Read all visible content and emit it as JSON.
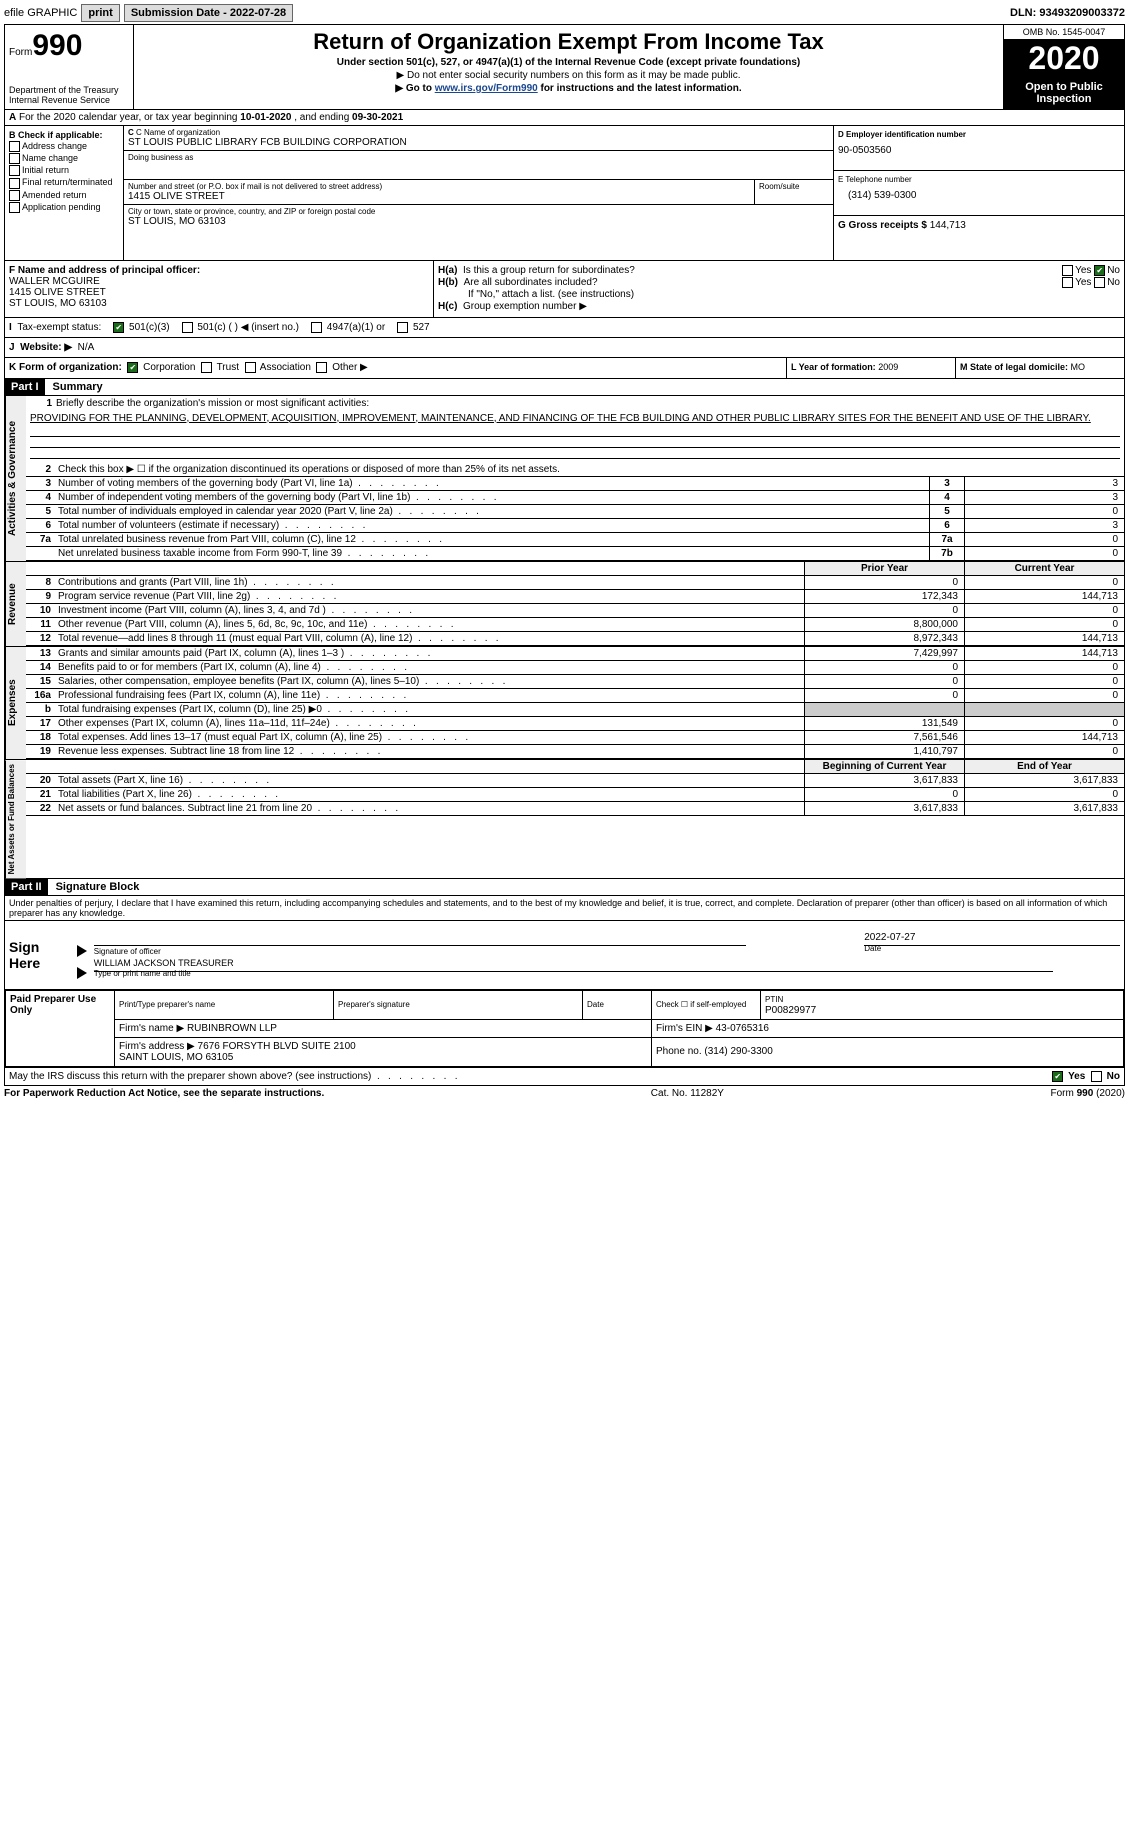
{
  "topbar": {
    "efile": "efile GRAPHIC",
    "print": "print",
    "submission_label": "Submission Date - ",
    "submission_date": "2022-07-28",
    "dln_label": "DLN: ",
    "dln": "93493209003372"
  },
  "header": {
    "form_label": "Form",
    "form_num": "990",
    "dept": "Department of the Treasury\nInternal Revenue Service",
    "title": "Return of Organization Exempt From Income Tax",
    "subtitle": "Under section 501(c), 527, or 4947(a)(1) of the Internal Revenue Code (except private foundations)",
    "instr1": "▶ Do not enter social security numbers on this form as it may be made public.",
    "instr2_pre": "▶ Go to ",
    "instr2_link": "www.irs.gov/Form990",
    "instr2_post": " for instructions and the latest information.",
    "omb": "OMB No. 1545-0047",
    "tax_year": "2020",
    "open_pub": "Open to Public Inspection"
  },
  "row_a": {
    "pre": "A",
    "text": "For the 2020 calendar year, or tax year beginning ",
    "start": "10-01-2020",
    "mid": "   , and ending ",
    "end": "09-30-2021"
  },
  "col_b": {
    "hdr": "B Check if applicable:",
    "items": [
      "Address change",
      "Name change",
      "Initial return",
      "Final return/terminated",
      "Amended return",
      "Application pending"
    ]
  },
  "col_c": {
    "name_lbl": "C Name of organization",
    "name": "ST LOUIS PUBLIC LIBRARY FCB BUILDING CORPORATION",
    "dba_lbl": "Doing business as",
    "dba": "",
    "addr_lbl": "Number and street (or P.O. box if mail is not delivered to street address)",
    "addr": "1415 OLIVE STREET",
    "room_lbl": "Room/suite",
    "city_lbl": "City or town, state or province, country, and ZIP or foreign postal code",
    "city": "ST LOUIS, MO  63103"
  },
  "col_d": {
    "d_lbl": "D Employer identification number",
    "d_val": "90-0503560",
    "e_lbl": "E Telephone number",
    "e_val": "(314) 539-0300",
    "g_lbl": "G Gross receipts $ ",
    "g_val": "144,713"
  },
  "row_f": {
    "lbl": "F Name and address of principal officer:",
    "name": "WALLER MCGUIRE",
    "addr": "1415 OLIVE STREET\nST LOUIS, MO  63103"
  },
  "row_h": {
    "ha_lbl": "H(a)",
    "ha_txt": "Is this a group return for subordinates?",
    "hb_lbl": "H(b)",
    "hb_txt": "Are all subordinates included?",
    "attach_note": "If \"No,\" attach a list. (see instructions)",
    "hc_lbl": "H(c)",
    "hc_txt": "Group exemption number ▶",
    "yes": "Yes",
    "no": "No"
  },
  "row_i": {
    "lbl": "I",
    "txt": "Tax-exempt status:",
    "opts": [
      "501(c)(3)",
      "501(c) (  ) ◀ (insert no.)",
      "4947(a)(1) or",
      "527"
    ]
  },
  "row_j": {
    "lbl": "J",
    "txt": "Website: ▶",
    "val": "N/A"
  },
  "row_k": {
    "lbl": "K Form of organization:",
    "opts": [
      "Corporation",
      "Trust",
      "Association",
      "Other ▶"
    ],
    "l_lbl": "L Year of formation: ",
    "l_val": "2009",
    "m_lbl": "M State of legal domicile: ",
    "m_val": "MO"
  },
  "part1": {
    "hdr": "Part I",
    "title": "Summary",
    "line1_lbl": "1",
    "line1_txt": "Briefly describe the organization's mission or most significant activities:",
    "line1_val": "PROVIDING FOR THE PLANNING, DEVELOPMENT, ACQUISITION, IMPROVEMENT, MAINTENANCE, AND FINANCING OF THE FCB BUILDING AND OTHER PUBLIC LIBRARY SITES FOR THE BENEFIT AND USE OF THE LIBRARY.",
    "line2_lbl": "2",
    "line2_txt": "Check this box ▶ ☐  if the organization discontinued its operations or disposed of more than 25% of its net assets.",
    "lines_gov": [
      {
        "n": "3",
        "d": "Number of voting members of the governing body (Part VI, line 1a)",
        "box": "3",
        "v": "3"
      },
      {
        "n": "4",
        "d": "Number of independent voting members of the governing body (Part VI, line 1b)",
        "box": "4",
        "v": "3"
      },
      {
        "n": "5",
        "d": "Total number of individuals employed in calendar year 2020 (Part V, line 2a)",
        "box": "5",
        "v": "0"
      },
      {
        "n": "6",
        "d": "Total number of volunteers (estimate if necessary)",
        "box": "6",
        "v": "3"
      },
      {
        "n": "7a",
        "d": "Total unrelated business revenue from Part VIII, column (C), line 12",
        "box": "7a",
        "v": "0"
      },
      {
        "n": "",
        "d": "Net unrelated business taxable income from Form 990-T, line 39",
        "box": "7b",
        "v": "0"
      }
    ],
    "prior_hdr": "Prior Year",
    "curr_hdr": "Current Year",
    "lines_rev": [
      {
        "n": "8",
        "d": "Contributions and grants (Part VIII, line 1h)",
        "p": "0",
        "c": "0"
      },
      {
        "n": "9",
        "d": "Program service revenue (Part VIII, line 2g)",
        "p": "172,343",
        "c": "144,713"
      },
      {
        "n": "10",
        "d": "Investment income (Part VIII, column (A), lines 3, 4, and 7d )",
        "p": "0",
        "c": "0"
      },
      {
        "n": "11",
        "d": "Other revenue (Part VIII, column (A), lines 5, 6d, 8c, 9c, 10c, and 11e)",
        "p": "8,800,000",
        "c": "0"
      },
      {
        "n": "12",
        "d": "Total revenue—add lines 8 through 11 (must equal Part VIII, column (A), line 12)",
        "p": "8,972,343",
        "c": "144,713"
      }
    ],
    "lines_exp": [
      {
        "n": "13",
        "d": "Grants and similar amounts paid (Part IX, column (A), lines 1–3 )",
        "p": "7,429,997",
        "c": "144,713"
      },
      {
        "n": "14",
        "d": "Benefits paid to or for members (Part IX, column (A), line 4)",
        "p": "0",
        "c": "0"
      },
      {
        "n": "15",
        "d": "Salaries, other compensation, employee benefits (Part IX, column (A), lines 5–10)",
        "p": "0",
        "c": "0"
      },
      {
        "n": "16a",
        "d": "Professional fundraising fees (Part IX, column (A), line 11e)",
        "p": "0",
        "c": "0"
      },
      {
        "n": "b",
        "d": "Total fundraising expenses (Part IX, column (D), line 25) ▶0",
        "p": "",
        "c": "",
        "grey": true
      },
      {
        "n": "17",
        "d": "Other expenses (Part IX, column (A), lines 11a–11d, 11f–24e)",
        "p": "131,549",
        "c": "0"
      },
      {
        "n": "18",
        "d": "Total expenses. Add lines 13–17 (must equal Part IX, column (A), line 25)",
        "p": "7,561,546",
        "c": "144,713"
      },
      {
        "n": "19",
        "d": "Revenue less expenses. Subtract line 18 from line 12",
        "p": "1,410,797",
        "c": "0"
      }
    ],
    "beg_hdr": "Beginning of Current Year",
    "end_hdr": "End of Year",
    "lines_net": [
      {
        "n": "20",
        "d": "Total assets (Part X, line 16)",
        "p": "3,617,833",
        "c": "3,617,833"
      },
      {
        "n": "21",
        "d": "Total liabilities (Part X, line 26)",
        "p": "0",
        "c": "0"
      },
      {
        "n": "22",
        "d": "Net assets or fund balances. Subtract line 21 from line 20",
        "p": "3,617,833",
        "c": "3,617,833"
      }
    ]
  },
  "side_labels": {
    "gov": "Activities & Governance",
    "rev": "Revenue",
    "exp": "Expenses",
    "net": "Net Assets or Fund Balances"
  },
  "part2": {
    "hdr": "Part II",
    "title": "Signature Block",
    "decl": "Under penalties of perjury, I declare that I have examined this return, including accompanying schedules and statements, and to the best of my knowledge and belief, it is true, correct, and complete. Declaration of preparer (other than officer) is based on all information of which preparer has any knowledge.",
    "sign_here": "Sign Here",
    "sig_officer_lbl": "Signature of officer",
    "sig_date": "2022-07-27",
    "date_lbl": "Date",
    "officer_name": "WILLIAM JACKSON  TREASURER",
    "officer_lbl": "Type or print name and title",
    "paid_hdr": "Paid Preparer Use Only",
    "prep_name_lbl": "Print/Type preparer's name",
    "prep_sig_lbl": "Preparer's signature",
    "prep_date_lbl": "Date",
    "prep_check_lbl": "Check ☐ if self-employed",
    "ptin_lbl": "PTIN",
    "ptin": "P00829977",
    "firm_name_lbl": "Firm's name   ▶ ",
    "firm_name": "RUBINBROWN LLP",
    "firm_ein_lbl": "Firm's EIN ▶ ",
    "firm_ein": "43-0765316",
    "firm_addr_lbl": "Firm's address ▶ ",
    "firm_addr": "7676 FORSYTH BLVD SUITE 2100\n                SAINT LOUIS, MO  63105",
    "firm_phone_lbl": "Phone no. ",
    "firm_phone": "(314) 290-3300",
    "may_irs": "May the IRS discuss this return with the preparer shown above? (see instructions)"
  },
  "footer": {
    "pra": "For Paperwork Reduction Act Notice, see the separate instructions.",
    "cat": "Cat. No. 11282Y",
    "form": "Form 990 (2020)"
  }
}
